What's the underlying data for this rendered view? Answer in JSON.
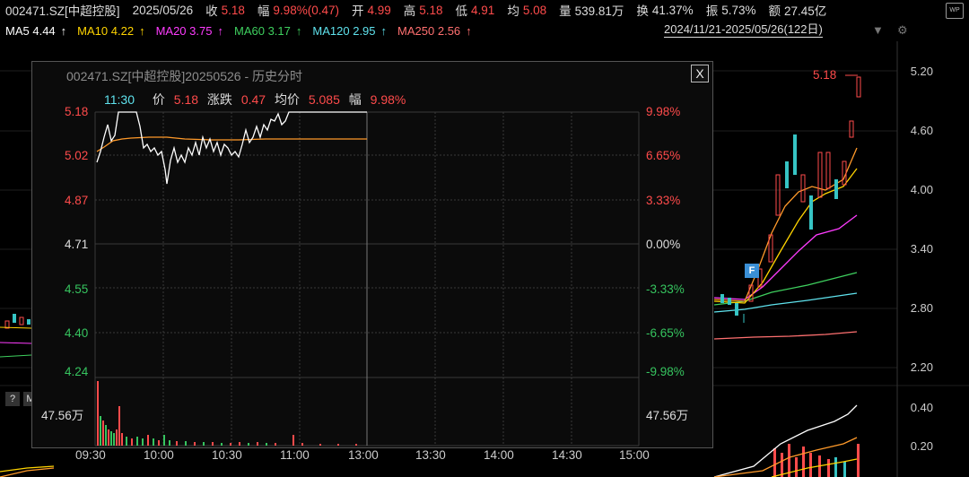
{
  "quote": {
    "code": "002471.SZ[中超控股]",
    "date": "2025/05/26",
    "close_label": "收",
    "close": "5.18",
    "change_label": "幅",
    "change": "9.98%(0.47)",
    "open_label": "开",
    "open": "4.99",
    "high_label": "高",
    "high": "5.18",
    "low_label": "低",
    "low": "4.91",
    "avg_label": "均",
    "avg": "5.08",
    "volume_label": "量",
    "volume": "539.81万",
    "turnover_label": "换",
    "turnover": "41.37%",
    "amplitude_label": "振",
    "amplitude": "5.73%",
    "amount_label": "额",
    "amount": "27.45亿",
    "wp_badge": "WP"
  },
  "ma_lines": [
    {
      "label": "MA5",
      "value": "4.44",
      "arrow": "↑",
      "color": "#ffffff"
    },
    {
      "label": "MA10",
      "value": "4.22",
      "arrow": "↑",
      "color": "#ffd400"
    },
    {
      "label": "MA20",
      "value": "3.75",
      "arrow": "↑",
      "color": "#ff3cff"
    },
    {
      "label": "MA60",
      "value": "3.17",
      "arrow": "↑",
      "color": "#3ecf5e"
    },
    {
      "label": "MA120",
      "value": "2.95",
      "arrow": "↑",
      "color": "#5fe3ee"
    },
    {
      "label": "MA250",
      "value": "2.56",
      "arrow": "↑",
      "color": "#ff7070"
    }
  ],
  "range": {
    "text": "2024/11/21-2025/05/26(122日)",
    "dropdown_icon": "triangle-down-icon",
    "settings_icon": "gear-icon"
  },
  "kline_axis": [
    "5.20",
    "4.60",
    "4.00",
    "3.40",
    "2.80",
    "2.20"
  ],
  "volume_axis": [
    "0.40",
    "0.20"
  ],
  "current_price_marker": "5.18",
  "f_badge": "F",
  "bottom_icons": [
    "?",
    "M"
  ],
  "popup": {
    "title": "002471.SZ[中超控股]20250526 - 历史分时",
    "close_label": "X",
    "cursor_time": "11:30",
    "price_label": "价",
    "price": "5.18",
    "chg_label": "涨跌",
    "chg": "0.47",
    "avg_label": "均价",
    "avg": "5.085",
    "pct_label": "幅",
    "pct": "9.98%",
    "price_axis_left": [
      {
        "v": "5.18",
        "c": "red"
      },
      {
        "v": "5.02",
        "c": "red"
      },
      {
        "v": "4.87",
        "c": "red"
      },
      {
        "v": "4.71",
        "c": "white"
      },
      {
        "v": "4.55",
        "c": "green"
      },
      {
        "v": "4.40",
        "c": "green"
      },
      {
        "v": "4.24",
        "c": "green"
      }
    ],
    "pct_axis_right": [
      {
        "v": "9.98%",
        "c": "red"
      },
      {
        "v": "6.65%",
        "c": "red"
      },
      {
        "v": "3.33%",
        "c": "red"
      },
      {
        "v": "0.00%",
        "c": "white"
      },
      {
        "v": "-3.33%",
        "c": "green"
      },
      {
        "v": "-6.65%",
        "c": "green"
      },
      {
        "v": "-9.98%",
        "c": "green"
      }
    ],
    "volume_label_left": "47.56万",
    "volume_label_right": "47.56万",
    "time_axis": [
      "09:30",
      "10:00",
      "10:30",
      "11:00",
      "13:00",
      "13:30",
      "14:00",
      "14:30",
      "15:00"
    ]
  }
}
